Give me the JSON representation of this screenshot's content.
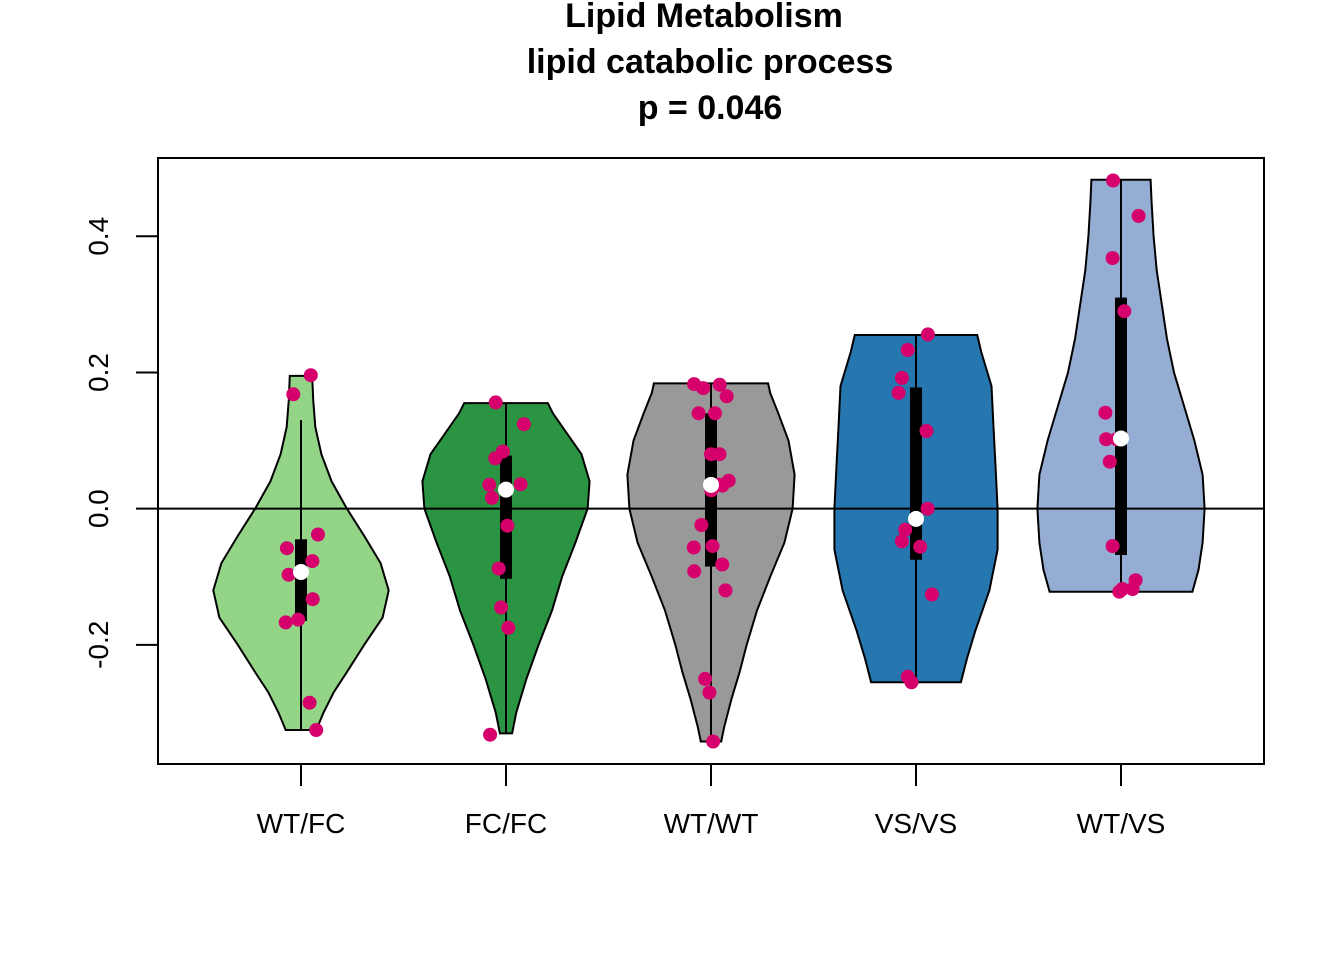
{
  "chart_data": {
    "type": "violin",
    "title_lines": [
      "Lipid Metabolism",
      "lipid catabolic process",
      "p = 0.046"
    ],
    "xlabel": "",
    "ylabel": "",
    "categories": [
      "WT/FC",
      "FC/FC",
      "WT/WT",
      "VS/VS",
      "WT/VS"
    ],
    "yticks": [
      -0.2,
      0.0,
      0.2,
      0.4
    ],
    "ytick_labels": [
      "-0.2",
      "0.0",
      "0.2",
      "0.4"
    ],
    "ylim": [
      -0.375,
      0.515
    ],
    "reference_line": 0,
    "point_color": "#d6006c",
    "groups": [
      {
        "name": "WT/FC",
        "fill": "#93d487",
        "min": -0.325,
        "max": 0.195,
        "q1": -0.165,
        "median": -0.093,
        "q3": -0.045,
        "whisker_low": -0.325,
        "whisker_high": 0.13,
        "density": [
          [
            -0.325,
            0.15
          ],
          [
            -0.3,
            0.22
          ],
          [
            -0.27,
            0.32
          ],
          [
            -0.24,
            0.45
          ],
          [
            -0.2,
            0.62
          ],
          [
            -0.16,
            0.8
          ],
          [
            -0.12,
            0.86
          ],
          [
            -0.08,
            0.78
          ],
          [
            -0.04,
            0.62
          ],
          [
            0.0,
            0.45
          ],
          [
            0.04,
            0.3
          ],
          [
            0.08,
            0.2
          ],
          [
            0.12,
            0.14
          ],
          [
            0.16,
            0.12
          ],
          [
            0.195,
            0.11
          ]
        ],
        "points": [
          -0.325,
          -0.285,
          -0.167,
          -0.163,
          -0.133,
          -0.097,
          -0.077,
          -0.058,
          -0.038,
          0.168,
          0.196
        ]
      },
      {
        "name": "FC/FC",
        "fill": "#2b9442",
        "min": -0.33,
        "max": 0.155,
        "q1": -0.103,
        "median": 0.028,
        "q3": 0.078,
        "whisker_low": -0.33,
        "whisker_high": 0.155,
        "density": [
          [
            -0.33,
            0.06
          ],
          [
            -0.3,
            0.1
          ],
          [
            -0.25,
            0.2
          ],
          [
            -0.2,
            0.32
          ],
          [
            -0.15,
            0.45
          ],
          [
            -0.1,
            0.55
          ],
          [
            -0.05,
            0.68
          ],
          [
            0.0,
            0.8
          ],
          [
            0.04,
            0.82
          ],
          [
            0.08,
            0.74
          ],
          [
            0.11,
            0.6
          ],
          [
            0.14,
            0.46
          ],
          [
            0.155,
            0.41
          ]
        ],
        "points": [
          -0.332,
          -0.175,
          -0.145,
          -0.088,
          -0.025,
          0.016,
          0.035,
          0.036,
          0.074,
          0.084,
          0.124,
          0.156
        ]
      },
      {
        "name": "WT/WT",
        "fill": "#999999",
        "min": -0.342,
        "max": 0.184,
        "q1": -0.085,
        "median": 0.035,
        "q3": 0.14,
        "whisker_low": -0.342,
        "whisker_high": 0.184,
        "density": [
          [
            -0.342,
            0.1
          ],
          [
            -0.32,
            0.13
          ],
          [
            -0.28,
            0.2
          ],
          [
            -0.24,
            0.28
          ],
          [
            -0.2,
            0.35
          ],
          [
            -0.15,
            0.45
          ],
          [
            -0.1,
            0.58
          ],
          [
            -0.05,
            0.72
          ],
          [
            0.0,
            0.8
          ],
          [
            0.05,
            0.82
          ],
          [
            0.1,
            0.76
          ],
          [
            0.14,
            0.66
          ],
          [
            0.17,
            0.58
          ],
          [
            0.184,
            0.56
          ]
        ],
        "points": [
          -0.342,
          -0.27,
          -0.25,
          -0.12,
          -0.092,
          -0.082,
          -0.057,
          -0.055,
          -0.024,
          0.027,
          0.034,
          0.035,
          0.041,
          0.08,
          0.08,
          0.14,
          0.14,
          0.165,
          0.177,
          0.182,
          0.183
        ]
      },
      {
        "name": "VS/VS",
        "fill": "#2677b0",
        "min": -0.255,
        "max": 0.255,
        "q1": -0.075,
        "median": -0.015,
        "q3": 0.178,
        "whisker_low": -0.255,
        "whisker_high": 0.255,
        "density": [
          [
            -0.255,
            0.44
          ],
          [
            -0.22,
            0.5
          ],
          [
            -0.18,
            0.58
          ],
          [
            -0.12,
            0.72
          ],
          [
            -0.06,
            0.8
          ],
          [
            0.0,
            0.8
          ],
          [
            0.06,
            0.78
          ],
          [
            0.12,
            0.76
          ],
          [
            0.18,
            0.74
          ],
          [
            0.23,
            0.64
          ],
          [
            0.255,
            0.6
          ]
        ],
        "points": [
          -0.255,
          -0.247,
          -0.126,
          -0.056,
          -0.048,
          -0.031,
          0.0,
          0.114,
          0.17,
          0.192,
          0.233,
          0.256
        ]
      },
      {
        "name": "WT/VS",
        "fill": "#95add3",
        "min": -0.122,
        "max": 0.483,
        "q1": -0.068,
        "median": 0.103,
        "q3": 0.31,
        "whisker_low": -0.122,
        "whisker_high": 0.483,
        "density": [
          [
            -0.122,
            0.7
          ],
          [
            -0.09,
            0.76
          ],
          [
            -0.05,
            0.8
          ],
          [
            0.0,
            0.82
          ],
          [
            0.05,
            0.8
          ],
          [
            0.1,
            0.72
          ],
          [
            0.15,
            0.62
          ],
          [
            0.2,
            0.52
          ],
          [
            0.25,
            0.45
          ],
          [
            0.3,
            0.4
          ],
          [
            0.35,
            0.35
          ],
          [
            0.4,
            0.32
          ],
          [
            0.45,
            0.3
          ],
          [
            0.483,
            0.29
          ]
        ],
        "points": [
          -0.122,
          -0.118,
          -0.118,
          -0.105,
          -0.055,
          0.069,
          0.102,
          0.102,
          0.141,
          0.29,
          0.368,
          0.43,
          0.482
        ]
      }
    ]
  }
}
